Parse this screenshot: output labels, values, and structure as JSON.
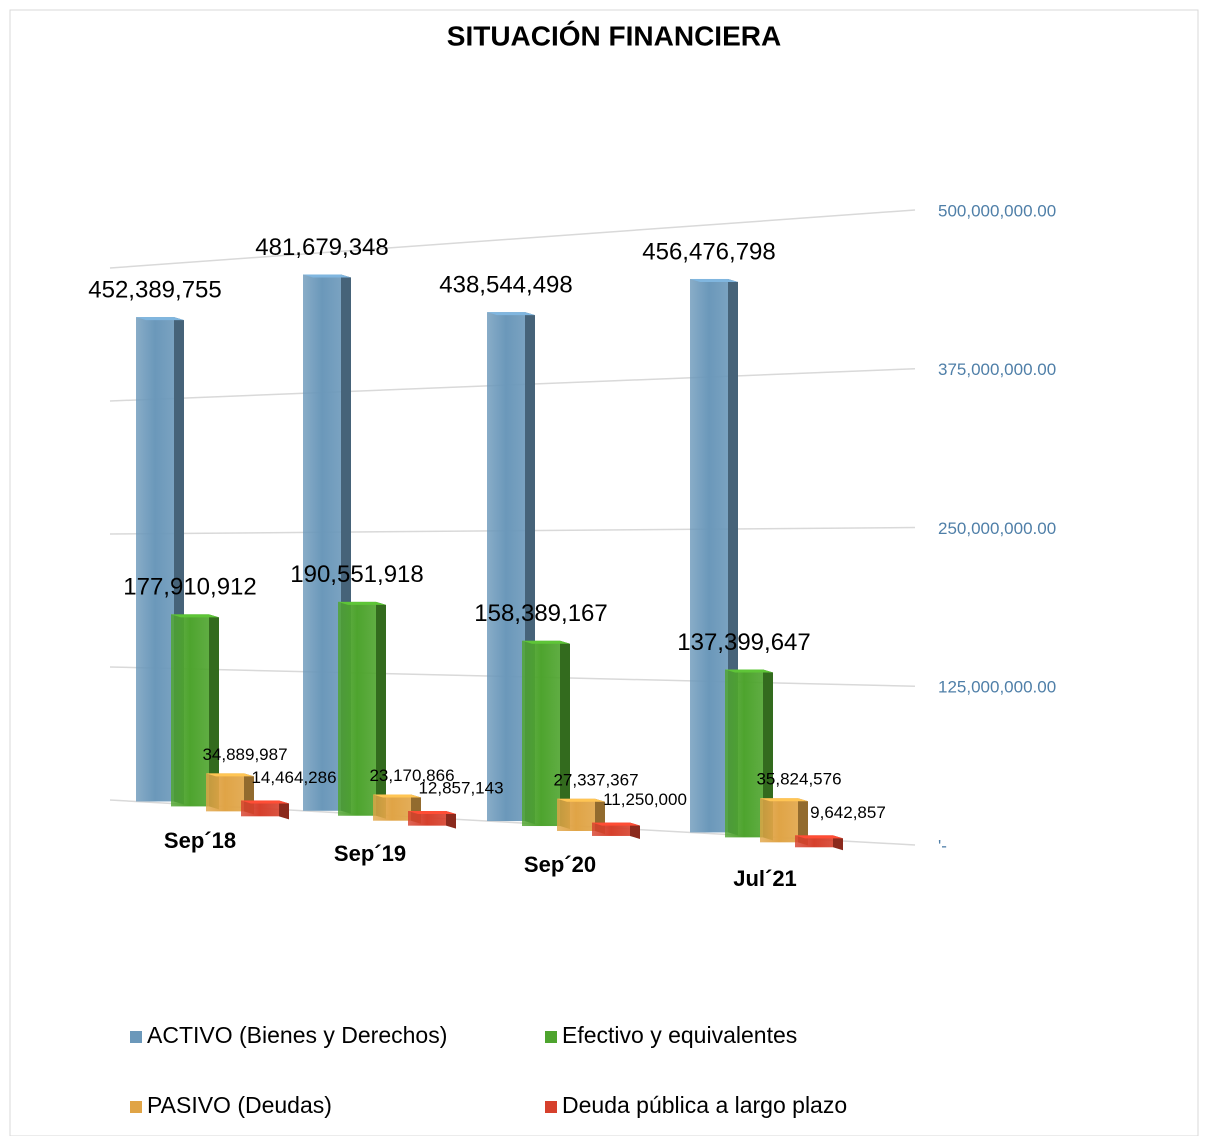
{
  "chart_data": {
    "type": "bar3d",
    "title": "SITUACIÓN FINANCIERA",
    "categories": [
      "Sep´18",
      "Sep´19",
      "Sep´20",
      "Jul´21"
    ],
    "series": [
      {
        "name": "ACTIVO (Bienes y Derechos)",
        "color": "#6b98ba",
        "values": [
          452389755,
          481679348,
          438544498,
          456476798
        ],
        "value_labels": [
          "452,389,755",
          "481,679,348",
          "438,544,498",
          "456,476,798"
        ]
      },
      {
        "name": "Efectivo y equivalentes",
        "color": "#4ea42e",
        "values": [
          177910912,
          190551918,
          158389167,
          137399647
        ],
        "value_labels": [
          "177,910,912",
          "190,551,918",
          "158,389,167",
          "137,399,647"
        ]
      },
      {
        "name": "PASIVO (Deudas)",
        "color": "#e0a446",
        "values": [
          34889987,
          23170866,
          27337367,
          35824576
        ],
        "value_labels": [
          "34,889,987",
          "23,170,866",
          "27,337,367",
          "35,824,576"
        ]
      },
      {
        "name": "Deuda pública a largo plazo",
        "color": "#d6402c",
        "values": [
          14464286,
          12857143,
          11250000,
          9642857
        ],
        "value_labels": [
          "14,464,286",
          "12,857,143",
          "11,250,000",
          "9,642,857"
        ]
      }
    ],
    "ylim": [
      0,
      500000000
    ],
    "yticks": [
      {
        "value": 0,
        "label": "'-"
      },
      {
        "value": 125000000,
        "label": "125,000,000.00"
      },
      {
        "value": 250000000,
        "label": "250,000,000.00"
      },
      {
        "value": 375000000,
        "label": "375,000,000.00"
      },
      {
        "value": 500000000,
        "label": "500,000,000.00"
      }
    ],
    "grid": true
  }
}
